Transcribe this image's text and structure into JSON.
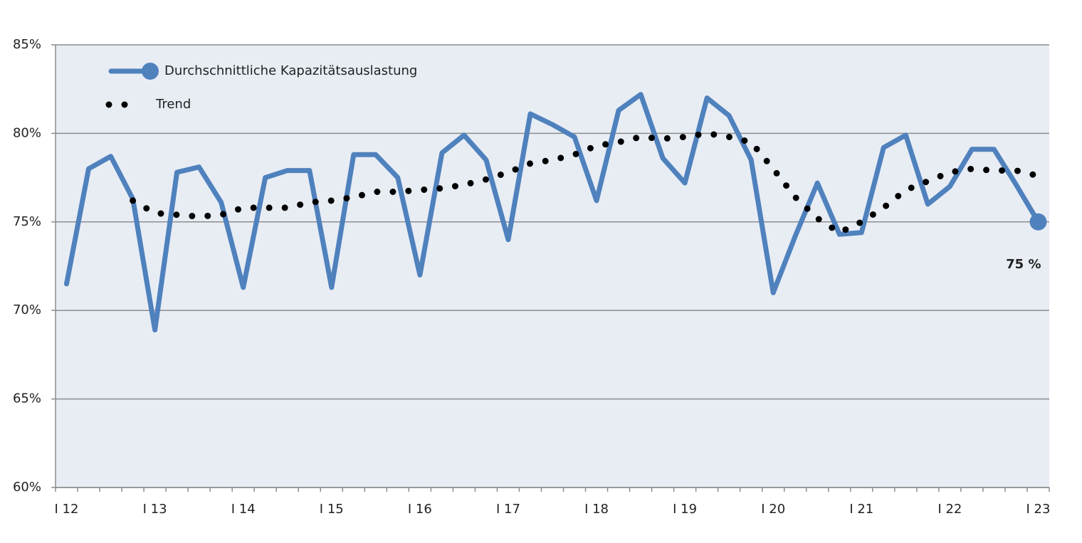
{
  "chart_data": {
    "type": "line",
    "categories": [
      "I 12",
      null,
      null,
      null,
      "I 13",
      null,
      null,
      null,
      "I 14",
      null,
      null,
      null,
      "I 15",
      null,
      null,
      null,
      "I 16",
      null,
      null,
      null,
      "I 17",
      null,
      null,
      null,
      "I 18",
      null,
      null,
      null,
      "I 19",
      null,
      null,
      null,
      "I 20",
      null,
      null,
      null,
      "I 21",
      null,
      null,
      null,
      "I 22",
      null,
      null,
      null,
      "I 23"
    ],
    "series": [
      {
        "name": "Durchschnittliche Kapazitätsauslastung",
        "color": "#4f81bd",
        "values": [
          71.5,
          78.0,
          78.7,
          76.3,
          68.9,
          77.8,
          78.1,
          76.1,
          71.3,
          77.5,
          77.9,
          77.9,
          71.3,
          78.8,
          78.8,
          77.5,
          72.0,
          78.9,
          79.9,
          78.5,
          74.0,
          81.1,
          80.5,
          79.8,
          76.2,
          81.3,
          82.2,
          78.6,
          77.2,
          82.0,
          81.0,
          78.5,
          71.0,
          74.2,
          77.2,
          74.3,
          74.4,
          79.2,
          79.9,
          76.0,
          77.0,
          79.1,
          79.1,
          77.1,
          75.0
        ]
      },
      {
        "name": "Trend",
        "color": "#000000",
        "values": [
          null,
          null,
          null,
          76.2,
          75.5,
          75.4,
          75.3,
          75.4,
          75.8,
          75.8,
          75.8,
          76.1,
          76.2,
          76.4,
          76.7,
          76.7,
          76.8,
          76.9,
          77.1,
          77.4,
          77.8,
          78.3,
          78.5,
          78.8,
          79.3,
          79.5,
          79.8,
          79.7,
          79.8,
          80.0,
          79.8,
          79.5,
          78.0,
          76.4,
          75.2,
          74.4,
          75.0,
          75.8,
          76.8,
          77.3,
          77.8,
          78.0,
          77.9,
          77.9,
          77.6
        ]
      }
    ],
    "annotation": "75 %",
    "ylim": [
      60,
      85
    ],
    "yticks": [
      {
        "value": 60,
        "label": "60%"
      },
      {
        "value": 65,
        "label": "65%"
      },
      {
        "value": 70,
        "label": "70%"
      },
      {
        "value": 75,
        "label": "75%"
      },
      {
        "value": 80,
        "label": "80%"
      },
      {
        "value": 85,
        "label": "85%"
      }
    ],
    "grid": true,
    "legend": "top-left"
  }
}
